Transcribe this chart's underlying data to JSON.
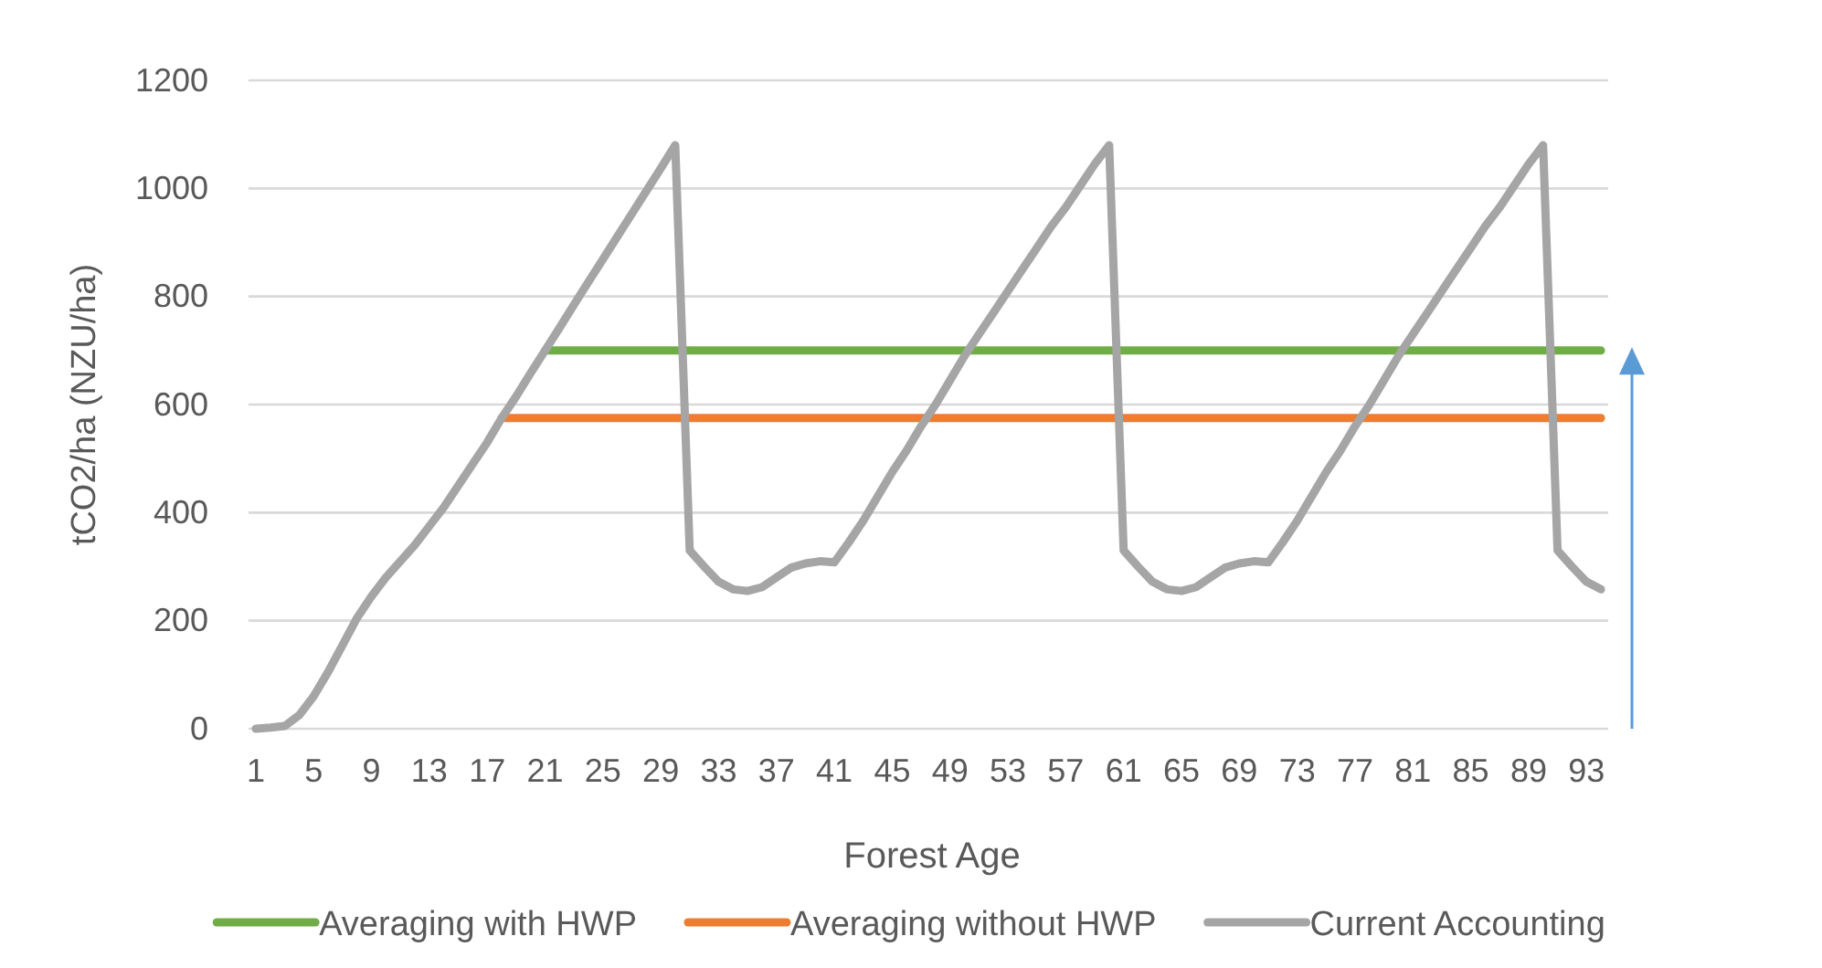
{
  "chart_data": {
    "type": "line",
    "xlabel": "Forest Age",
    "ylabel": "tCO2/ha (NZU/ha)",
    "categories": [
      "1",
      null,
      null,
      null,
      "5",
      null,
      null,
      null,
      "9",
      null,
      null,
      null,
      "13",
      null,
      null,
      null,
      "17",
      null,
      null,
      null,
      "21",
      null,
      null,
      null,
      "25",
      null,
      null,
      null,
      "29",
      null,
      null,
      null,
      "33",
      null,
      null,
      null,
      "37",
      null,
      null,
      null,
      "41",
      null,
      null,
      null,
      "45",
      null,
      null,
      null,
      "49",
      null,
      null,
      null,
      "53",
      null,
      null,
      null,
      "57",
      null,
      null,
      null,
      "61",
      null,
      null,
      null,
      "65",
      null,
      null,
      null,
      "69",
      null,
      null,
      null,
      "73",
      null,
      null,
      null,
      "77",
      null,
      null,
      null,
      "81",
      null,
      null,
      null,
      "85",
      null,
      null,
      null,
      "89",
      null,
      null,
      null,
      "93",
      null
    ],
    "ylim": [
      0,
      1200
    ],
    "yticks": [
      0,
      200,
      400,
      600,
      800,
      1000,
      1200
    ],
    "grid": "y",
    "legend": "bottom",
    "line_style": "solid",
    "marker": "none",
    "series": [
      {
        "name": "Averaging with HWP",
        "color": "#70ad47",
        "values": [
          null,
          null,
          null,
          null,
          null,
          null,
          null,
          null,
          null,
          null,
          null,
          null,
          null,
          null,
          null,
          null,
          null,
          null,
          null,
          null,
          700,
          700,
          700,
          700,
          700,
          700,
          700,
          700,
          700,
          700,
          700,
          700,
          700,
          700,
          700,
          700,
          700,
          700,
          700,
          700,
          700,
          700,
          700,
          700,
          700,
          700,
          700,
          700,
          700,
          700,
          700,
          700,
          700,
          700,
          700,
          700,
          700,
          700,
          700,
          700,
          700,
          700,
          700,
          700,
          700,
          700,
          700,
          700,
          700,
          700,
          700,
          700,
          700,
          700,
          700,
          700,
          700,
          700,
          700,
          700,
          700,
          700,
          700,
          700,
          700,
          700,
          700,
          700,
          700,
          700,
          700,
          700,
          700,
          700
        ]
      },
      {
        "name": "Averaging without HWP",
        "color": "#ed7d31",
        "values": [
          null,
          null,
          null,
          null,
          null,
          null,
          null,
          null,
          null,
          null,
          null,
          null,
          null,
          null,
          null,
          null,
          null,
          575,
          575,
          575,
          575,
          575,
          575,
          575,
          575,
          575,
          575,
          575,
          575,
          575,
          575,
          575,
          575,
          575,
          575,
          575,
          575,
          575,
          575,
          575,
          575,
          575,
          575,
          575,
          575,
          575,
          575,
          575,
          575,
          575,
          575,
          575,
          575,
          575,
          575,
          575,
          575,
          575,
          575,
          575,
          575,
          575,
          575,
          575,
          575,
          575,
          575,
          575,
          575,
          575,
          575,
          575,
          575,
          575,
          575,
          575,
          575,
          575,
          575,
          575,
          575,
          575,
          575,
          575,
          575,
          575,
          575,
          575,
          575,
          575,
          575,
          575,
          575,
          575
        ]
      },
      {
        "name": "Current Accounting",
        "color": "#a5a5a5",
        "values": [
          0,
          2,
          5,
          25,
          60,
          105,
          155,
          205,
          245,
          280,
          310,
          340,
          375,
          410,
          450,
          490,
          530,
          575,
          615,
          658,
          700,
          742,
          785,
          827,
          869,
          911,
          953,
          995,
          1037,
          1080,
          330,
          300,
          272,
          258,
          255,
          262,
          280,
          298,
          306,
          310,
          308,
          345,
          385,
          430,
          475,
          515,
          560,
          600,
          645,
          690,
          730,
          770,
          810,
          850,
          890,
          930,
          965,
          1005,
          1045,
          1080,
          330,
          300,
          272,
          258,
          255,
          262,
          280,
          298,
          306,
          310,
          308,
          345,
          385,
          430,
          475,
          515,
          560,
          600,
          645,
          690,
          730,
          770,
          810,
          850,
          890,
          930,
          965,
          1005,
          1045,
          1080,
          330,
          300,
          272,
          258
        ]
      }
    ]
  }
}
